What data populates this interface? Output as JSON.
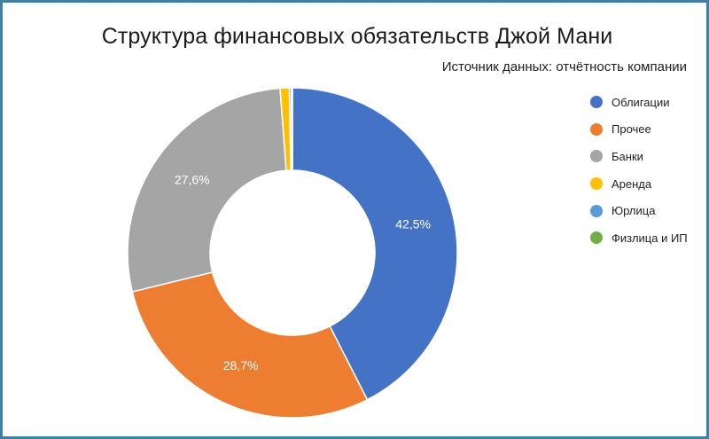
{
  "chart_data": {
    "type": "pie",
    "title": "Структура финансовых обязательств Джой Мани",
    "subtitle": "Источник данных: отчётность компании",
    "legend_position": "right",
    "categories": [
      "Облигации",
      "Прочее",
      "Банки",
      "Аренда",
      "Юрлица",
      "Физлица и ИП"
    ],
    "values": [
      42.5,
      28.7,
      27.6,
      0.9,
      0.2,
      0.1
    ],
    "data_labels": [
      "42,5%",
      "28,7%",
      "27,6%",
      "",
      "",
      ""
    ],
    "colors": [
      "#4472c4",
      "#ed7d31",
      "#a5a5a5",
      "#ffc000",
      "#5b9bd5",
      "#70ad47"
    ],
    "donut": true
  }
}
